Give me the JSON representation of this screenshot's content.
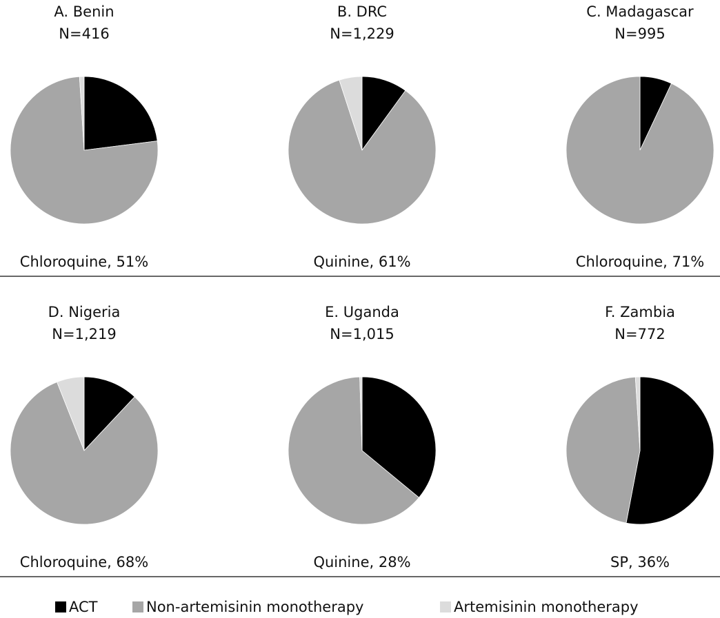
{
  "chart_data": [
    {
      "type": "pie",
      "title": "A. Benin",
      "subtitle": "N=416",
      "annotation": "Chloroquine, 51%",
      "values": [
        23,
        76,
        1
      ]
    },
    {
      "type": "pie",
      "title": "B. DRC",
      "subtitle": "N=1,229",
      "annotation": "Quinine, 61%",
      "values": [
        10,
        85,
        5
      ]
    },
    {
      "type": "pie",
      "title": "C. Madagascar",
      "subtitle": "N=995",
      "annotation": "Chloroquine, 71%",
      "values": [
        7,
        93,
        0
      ]
    },
    {
      "type": "pie",
      "title": "D. Nigeria",
      "subtitle": "N=1,219",
      "annotation": "Chloroquine, 68%",
      "values": [
        12,
        82,
        6
      ]
    },
    {
      "type": "pie",
      "title": "E. Uganda",
      "subtitle": "N=1,015",
      "annotation": "Quinine, 28%",
      "values": [
        36,
        63.5,
        0.5
      ]
    },
    {
      "type": "pie",
      "title": "F. Zambia",
      "subtitle": "N=772",
      "annotation": "SP, 36%",
      "values": [
        53,
        46,
        1
      ]
    }
  ],
  "legend": {
    "labels": [
      "ACT",
      "Non-artemisinin monotherapy",
      "Artemisinin monotherapy"
    ],
    "colors": [
      "#000000",
      "#a6a6a6",
      "#dcdcdc"
    ]
  }
}
